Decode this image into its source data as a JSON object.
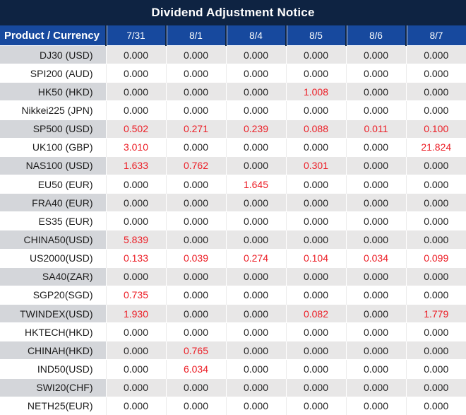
{
  "title": "Dividend Adjustment Notice",
  "colors": {
    "title_bg": "#0e2342",
    "header_bg": "#17499e",
    "header_text": "#ffffff",
    "stripe_value_bg": "#e8e7e7",
    "stripe_product_bg": "#d4d6da",
    "value_text": "#222222",
    "nonzero_red": "#ec1c24"
  },
  "table": {
    "product_header": "Product / Currency",
    "date_columns": [
      "7/31",
      "8/1",
      "8/4",
      "8/5",
      "8/6",
      "8/7"
    ],
    "rows": [
      {
        "product": "DJ30 (USD)",
        "values": [
          "0.000",
          "0.000",
          "0.000",
          "0.000",
          "0.000",
          "0.000"
        ]
      },
      {
        "product": "SPI200 (AUD)",
        "values": [
          "0.000",
          "0.000",
          "0.000",
          "0.000",
          "0.000",
          "0.000"
        ]
      },
      {
        "product": "HK50 (HKD)",
        "values": [
          "0.000",
          "0.000",
          "0.000",
          "1.008",
          "0.000",
          "0.000"
        ]
      },
      {
        "product": "Nikkei225 (JPN)",
        "values": [
          "0.000",
          "0.000",
          "0.000",
          "0.000",
          "0.000",
          "0.000"
        ]
      },
      {
        "product": "SP500 (USD)",
        "values": [
          "0.502",
          "0.271",
          "0.239",
          "0.088",
          "0.011",
          "0.100"
        ]
      },
      {
        "product": "UK100 (GBP)",
        "values": [
          "3.010",
          "0.000",
          "0.000",
          "0.000",
          "0.000",
          "21.824"
        ]
      },
      {
        "product": "NAS100 (USD)",
        "values": [
          "1.633",
          "0.762",
          "0.000",
          "0.301",
          "0.000",
          "0.000"
        ]
      },
      {
        "product": "EU50 (EUR)",
        "values": [
          "0.000",
          "0.000",
          "1.645",
          "0.000",
          "0.000",
          "0.000"
        ]
      },
      {
        "product": "FRA40 (EUR)",
        "values": [
          "0.000",
          "0.000",
          "0.000",
          "0.000",
          "0.000",
          "0.000"
        ]
      },
      {
        "product": "ES35 (EUR)",
        "values": [
          "0.000",
          "0.000",
          "0.000",
          "0.000",
          "0.000",
          "0.000"
        ]
      },
      {
        "product": "CHINA50(USD)",
        "values": [
          "5.839",
          "0.000",
          "0.000",
          "0.000",
          "0.000",
          "0.000"
        ]
      },
      {
        "product": "US2000(USD)",
        "values": [
          "0.133",
          "0.039",
          "0.274",
          "0.104",
          "0.034",
          "0.099"
        ]
      },
      {
        "product": "SA40(ZAR)",
        "values": [
          "0.000",
          "0.000",
          "0.000",
          "0.000",
          "0.000",
          "0.000"
        ]
      },
      {
        "product": "SGP20(SGD)",
        "values": [
          "0.735",
          "0.000",
          "0.000",
          "0.000",
          "0.000",
          "0.000"
        ]
      },
      {
        "product": "TWINDEX(USD)",
        "values": [
          "1.930",
          "0.000",
          "0.000",
          "0.082",
          "0.000",
          "1.779"
        ]
      },
      {
        "product": "HKTECH(HKD)",
        "values": [
          "0.000",
          "0.000",
          "0.000",
          "0.000",
          "0.000",
          "0.000"
        ]
      },
      {
        "product": "CHINAH(HKD)",
        "values": [
          "0.000",
          "0.765",
          "0.000",
          "0.000",
          "0.000",
          "0.000"
        ]
      },
      {
        "product": "IND50(USD)",
        "values": [
          "0.000",
          "6.034",
          "0.000",
          "0.000",
          "0.000",
          "0.000"
        ]
      },
      {
        "product": "SWI20(CHF)",
        "values": [
          "0.000",
          "0.000",
          "0.000",
          "0.000",
          "0.000",
          "0.000"
        ]
      },
      {
        "product": "NETH25(EUR)",
        "values": [
          "0.000",
          "0.000",
          "0.000",
          "0.000",
          "0.000",
          "0.000"
        ]
      }
    ]
  }
}
